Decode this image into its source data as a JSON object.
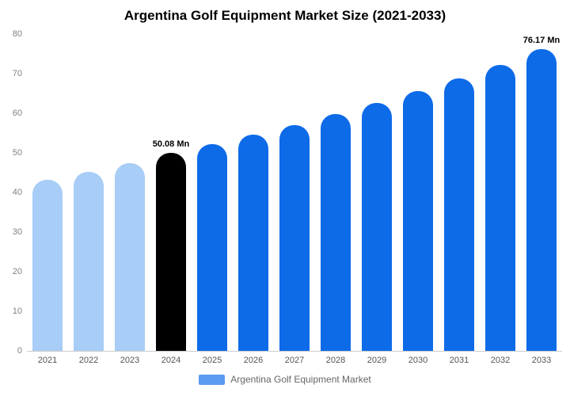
{
  "title": "Argentina Golf Equipment Market Size (2021-2033)",
  "legend": {
    "label": "Argentina Golf Equipment Market",
    "swatch_color": "#5b9bf0"
  },
  "colors": {
    "historical_bar": "#a8cdf6",
    "highlight_bar": "#000000",
    "forecast_bar": "#0d6be8",
    "axis_text": "#808080",
    "baseline": "#cccccc"
  },
  "chart_data": {
    "type": "bar",
    "title": "Argentina Golf Equipment Market Size (2021-2033)",
    "categories": [
      "2021",
      "2022",
      "2023",
      "2024",
      "2025",
      "2026",
      "2027",
      "2028",
      "2029",
      "2030",
      "2031",
      "2032",
      "2033"
    ],
    "values": [
      43.2,
      45.3,
      47.4,
      50.08,
      52.3,
      54.6,
      57.0,
      59.8,
      62.7,
      65.7,
      68.9,
      72.3,
      76.17
    ],
    "bar_colors": [
      "#a8cdf6",
      "#a8cdf6",
      "#a8cdf6",
      "#000000",
      "#0d6be8",
      "#0d6be8",
      "#0d6be8",
      "#0d6be8",
      "#0d6be8",
      "#0d6be8",
      "#0d6be8",
      "#0d6be8",
      "#0d6be8"
    ],
    "annotations": [
      {
        "index": 3,
        "text": "50.08 Mn"
      },
      {
        "index": 12,
        "text": "76.17 Mn"
      }
    ],
    "xlabel": "",
    "ylabel": "",
    "ylim": [
      0,
      80
    ],
    "yticks": [
      0,
      10,
      20,
      30,
      40,
      50,
      60,
      70,
      80
    ],
    "grid": false,
    "legend_position": "bottom"
  }
}
